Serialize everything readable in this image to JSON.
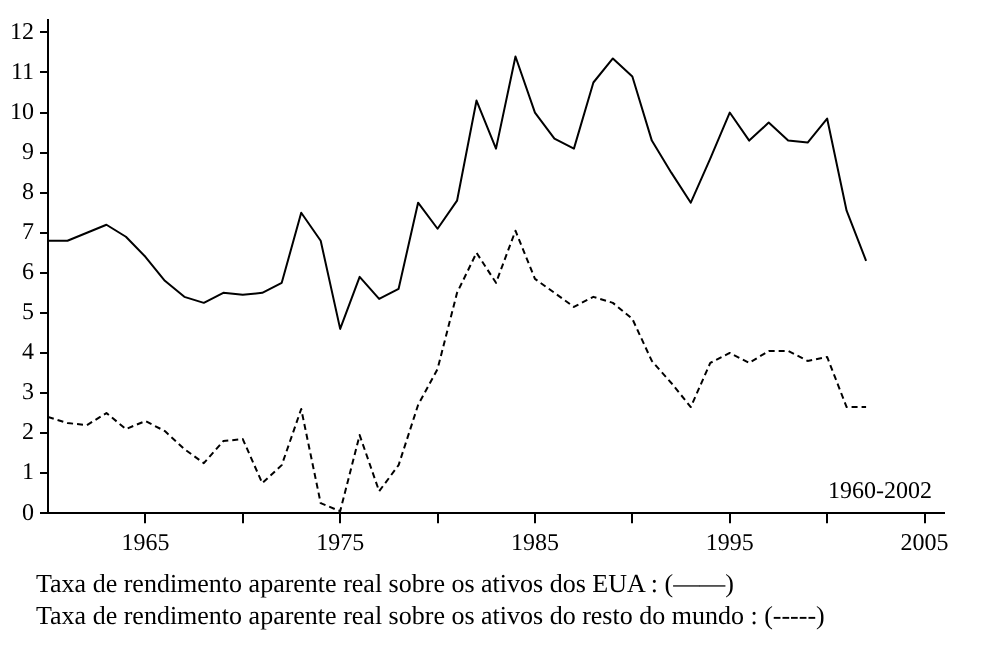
{
  "chart_data": {
    "type": "line",
    "x": [
      1960,
      1961,
      1962,
      1963,
      1964,
      1965,
      1966,
      1967,
      1968,
      1969,
      1970,
      1971,
      1972,
      1973,
      1974,
      1975,
      1976,
      1977,
      1978,
      1979,
      1980,
      1981,
      1982,
      1983,
      1984,
      1985,
      1986,
      1987,
      1988,
      1989,
      1990,
      1991,
      1992,
      1993,
      1994,
      1995,
      1996,
      1997,
      1998,
      1999,
      2000,
      2001,
      2002
    ],
    "series": [
      {
        "color": "#000000",
        "line_style": "solid",
        "values": [
          6.8,
          6.8,
          7.0,
          7.2,
          6.9,
          6.4,
          5.8,
          5.4,
          5.25,
          5.5,
          5.45,
          5.5,
          5.75,
          7.5,
          6.8,
          4.6,
          5.9,
          5.35,
          5.6,
          7.75,
          7.1,
          7.8,
          10.3,
          9.1,
          11.4,
          10.0,
          9.35,
          9.1,
          10.75,
          11.35,
          10.9,
          9.3,
          8.5,
          7.75,
          8.85,
          10.0,
          9.3,
          9.75,
          9.3,
          9.25,
          9.85,
          7.55,
          6.3
        ]
      },
      {
        "color": "#000000",
        "line_style": "dashed",
        "values": [
          2.4,
          2.25,
          2.2,
          2.5,
          2.1,
          2.3,
          2.05,
          1.6,
          1.25,
          1.8,
          1.85,
          0.75,
          1.2,
          2.6,
          0.25,
          0.05,
          1.95,
          0.55,
          1.2,
          2.7,
          3.6,
          5.5,
          6.5,
          5.75,
          7.05,
          5.85,
          5.5,
          5.15,
          5.4,
          5.25,
          4.85,
          3.8,
          3.25,
          2.65,
          3.75,
          4.0,
          3.75,
          4.05,
          4.05,
          3.8,
          3.9,
          2.65,
          2.65
        ]
      }
    ],
    "xlim": [
      1960,
      2006
    ],
    "xticks": [
      {
        "value": 1965,
        "label": "1965"
      },
      {
        "value": 1970,
        "label": null
      },
      {
        "value": 1975,
        "label": "1975"
      },
      {
        "value": 1980,
        "label": null
      },
      {
        "value": 1985,
        "label": "1985"
      },
      {
        "value": 1990,
        "label": null
      },
      {
        "value": 1995,
        "label": "1995"
      },
      {
        "value": 2000,
        "label": null
      },
      {
        "value": 2005,
        "label": "2005"
      }
    ],
    "ylim": [
      0,
      12.3
    ],
    "yticks": [
      0,
      1,
      2,
      3,
      4,
      5,
      6,
      7,
      8,
      9,
      10,
      11,
      12
    ],
    "grid": false,
    "legend": false,
    "marker": "none",
    "annotations": [
      "1960-2002",
      "Taxa de rendimento aparente real sobre os ativos dos EUA : (——)",
      "Taxa de rendimento aparente real sobre os ativos do resto do mundo : (-----)"
    ]
  }
}
